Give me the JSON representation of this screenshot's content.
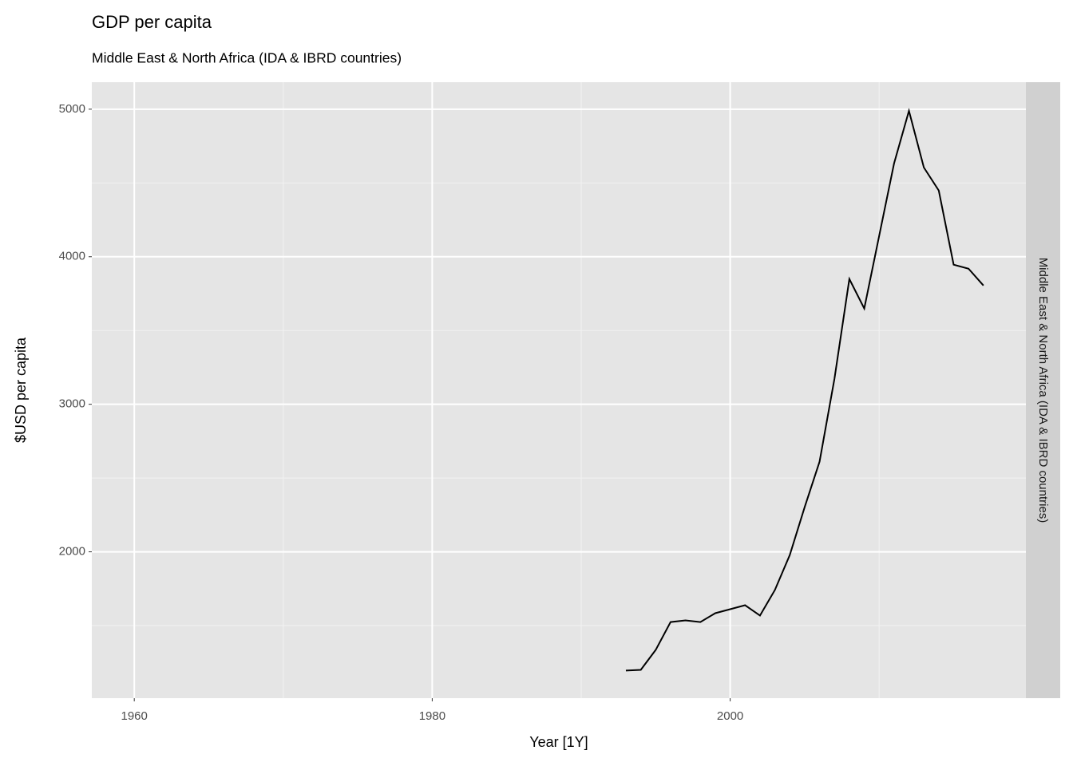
{
  "chart_data": {
    "type": "line",
    "title": "GDP per capita",
    "subtitle": "Middle East & North Africa (IDA & IBRD countries)",
    "facet_label": "Middle East & North Africa (IDA & IBRD countries)",
    "x_label": "Year [1Y]",
    "y_label": "$USD per capita",
    "x": [
      1993,
      1994,
      1995,
      1996,
      1997,
      1998,
      1999,
      2000,
      2001,
      2002,
      2003,
      2004,
      2005,
      2006,
      2007,
      2008,
      2009,
      2010,
      2011,
      2012,
      2013,
      2014,
      2015,
      2016,
      2017
    ],
    "series": [
      {
        "color": "#000000",
        "values": [
          1195,
          1200,
          1335,
          1524,
          1535,
          1524,
          1584,
          1611,
          1638,
          1568,
          1741,
          1978,
          2303,
          2611,
          3173,
          3849,
          3649,
          4141,
          4632,
          4989,
          4605,
          4449,
          3946,
          3919,
          3805
        ]
      }
    ],
    "xlim": [
      1957.15,
      2019.85
    ],
    "ylim": [
      1008,
      5183
    ],
    "xticks": [
      1960,
      1980,
      2000
    ],
    "yticks": [
      2000,
      3000,
      4000,
      5000
    ],
    "xminor": [
      1970,
      1990,
      2010
    ],
    "yminor": [
      1500,
      2500,
      3500,
      4500
    ],
    "grid": true
  }
}
